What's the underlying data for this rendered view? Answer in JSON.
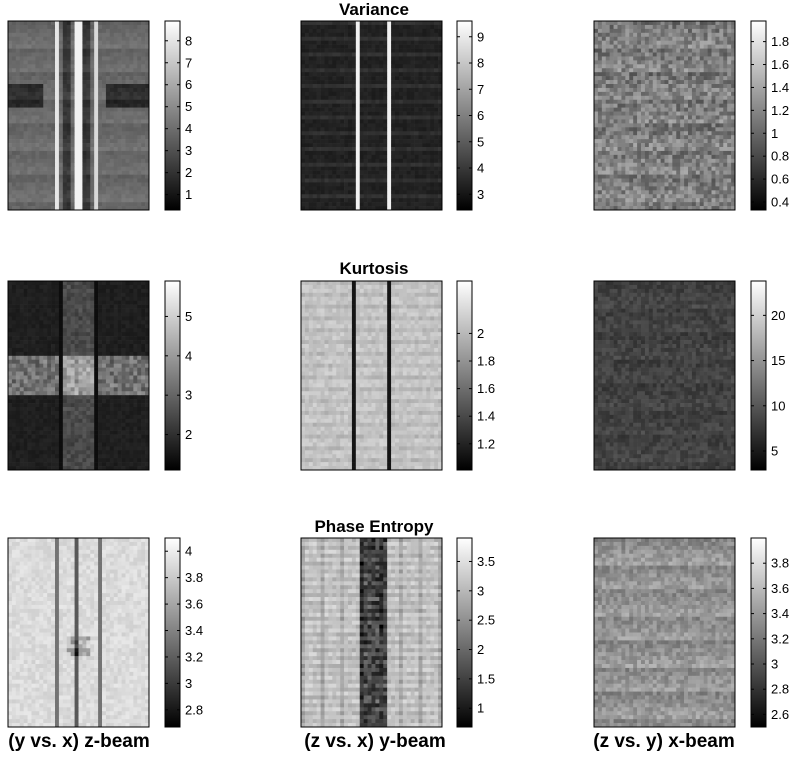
{
  "chart_data": {
    "type": "heatmap",
    "colormap": "gray",
    "rows": [
      {
        "title": "Variance",
        "panels": [
          {
            "column": "(y vs. x) z-beam",
            "colorbar": {
              "ticks": [
                "1",
                "2",
                "3",
                "4",
                "5",
                "6",
                "7",
                "8"
              ],
              "range": [
                0.3,
                8.9
              ]
            }
          },
          {
            "column": "(z vs. x) y-beam",
            "colorbar": {
              "ticks": [
                "3",
                "4",
                "5",
                "6",
                "7",
                "8",
                "9"
              ],
              "range": [
                2.4,
                9.6
              ]
            }
          },
          {
            "column": "(z vs. y) x-beam",
            "colorbar": {
              "ticks": [
                "0.4",
                "0.6",
                "0.8",
                "1",
                "1.2",
                "1.4",
                "1.6",
                "1.8"
              ],
              "range": [
                0.33,
                1.98
              ]
            }
          }
        ]
      },
      {
        "title": "Kurtosis",
        "panels": [
          {
            "column": "(y vs. x) z-beam",
            "colorbar": {
              "ticks": [
                "2",
                "3",
                "4",
                "5"
              ],
              "range": [
                1.1,
                5.9
              ]
            }
          },
          {
            "column": "(z vs. x) y-beam",
            "colorbar": {
              "ticks": [
                "1.2",
                "1.4",
                "1.6",
                "1.8",
                "2"
              ],
              "range": [
                1.01,
                2.38
              ]
            }
          },
          {
            "column": "(z vs. y) x-beam",
            "colorbar": {
              "ticks": [
                "5",
                "10",
                "15",
                "20"
              ],
              "range": [
                2.9,
                23.8
              ]
            }
          }
        ]
      },
      {
        "title": "Phase Entropy",
        "panels": [
          {
            "column": "(y vs. x) z-beam",
            "colorbar": {
              "ticks": [
                "2.8",
                "3",
                "3.2",
                "3.4",
                "3.6",
                "3.8",
                "4"
              ],
              "range": [
                2.67,
                4.1
              ]
            }
          },
          {
            "column": "(z vs. x) y-beam",
            "colorbar": {
              "ticks": [
                "1",
                "1.5",
                "2",
                "2.5",
                "3",
                "3.5"
              ],
              "range": [
                0.68,
                3.9
              ]
            }
          },
          {
            "column": "(z vs. y) x-beam",
            "colorbar": {
              "ticks": [
                "2.6",
                "2.8",
                "3",
                "3.2",
                "3.4",
                "3.6",
                "3.8"
              ],
              "range": [
                2.5,
                4.0
              ]
            }
          }
        ]
      }
    ],
    "column_labels": [
      "(y vs. x) z-beam",
      "(z vs. x) y-beam",
      "(z vs. y) x-beam"
    ]
  }
}
